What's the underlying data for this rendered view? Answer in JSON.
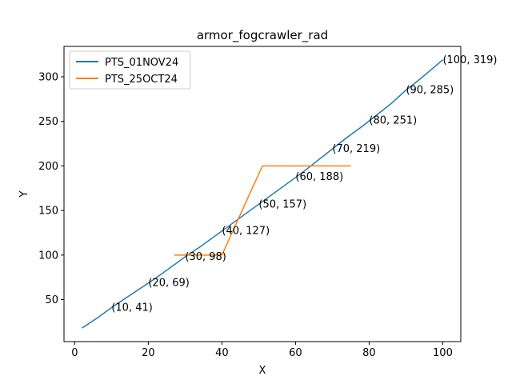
{
  "chart_data": {
    "type": "line",
    "title": "armor_fogcrawler_rad",
    "xlabel": "X",
    "ylabel": "Y",
    "xlim": [
      -2.9,
      104.9
    ],
    "ylim": [
      2.9,
      334.1
    ],
    "xticks": [
      0,
      20,
      40,
      60,
      80,
      100
    ],
    "yticks": [
      50,
      100,
      150,
      200,
      250,
      300
    ],
    "grid": false,
    "legend": "upper-left",
    "series": [
      {
        "name": "PTS_01NOV24",
        "color": "#1f77b4",
        "x": [
          2,
          6,
          10,
          14,
          18,
          22,
          26,
          30,
          34,
          38,
          42,
          46,
          50,
          54,
          58,
          62,
          66,
          70,
          74,
          78,
          82,
          86,
          90,
          94,
          100
        ],
        "y": [
          18,
          29,
          41,
          52,
          63,
          74,
          86,
          98,
          109,
          121,
          133,
          145,
          157,
          169,
          181,
          193,
          206,
          219,
          232,
          244,
          257,
          270,
          285,
          298,
          319
        ]
      },
      {
        "name": "PTS_25OCT24",
        "color": "#ff7f0e",
        "x": [
          27,
          40,
          51,
          75
        ],
        "y": [
          100,
          100,
          200,
          200
        ]
      }
    ],
    "annotations": [
      {
        "x": 10,
        "y": 41,
        "text": "(10, 41)"
      },
      {
        "x": 20,
        "y": 69,
        "text": "(20, 69)"
      },
      {
        "x": 30,
        "y": 98,
        "text": "(30, 98)"
      },
      {
        "x": 40,
        "y": 127,
        "text": "(40, 127)"
      },
      {
        "x": 50,
        "y": 157,
        "text": "(50, 157)"
      },
      {
        "x": 60,
        "y": 188,
        "text": "(60, 188)"
      },
      {
        "x": 70,
        "y": 219,
        "text": "(70, 219)"
      },
      {
        "x": 80,
        "y": 251,
        "text": "(80, 251)"
      },
      {
        "x": 90,
        "y": 285,
        "text": "(90, 285)"
      },
      {
        "x": 100,
        "y": 319,
        "text": "(100, 319)"
      }
    ]
  }
}
